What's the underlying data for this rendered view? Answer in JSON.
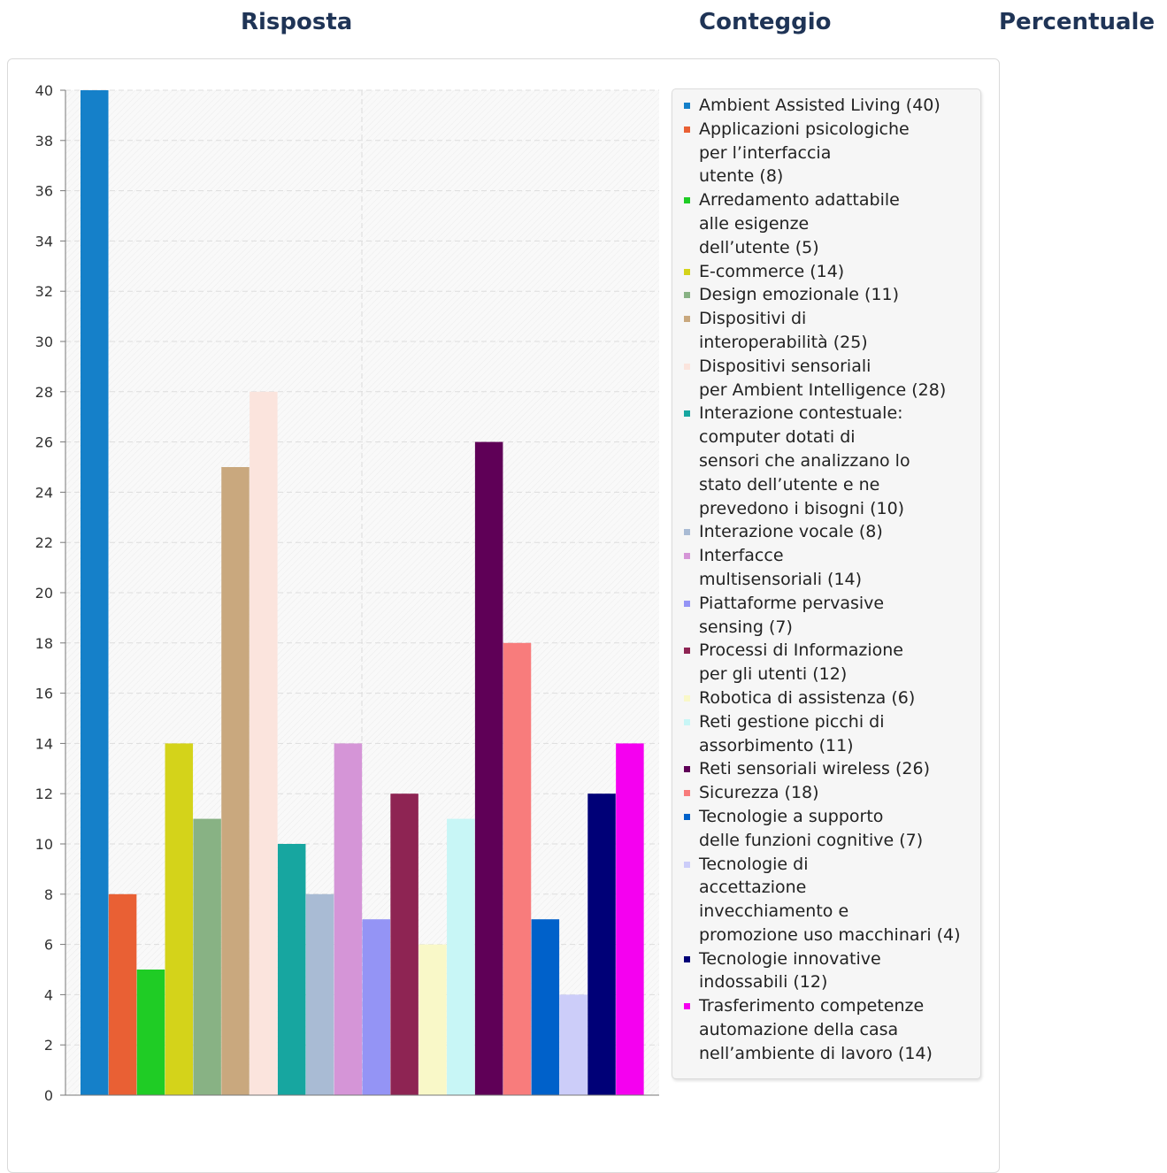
{
  "headers": {
    "risposta": "Risposta",
    "conteggio": "Conteggio",
    "percentuale": "Percentuale"
  },
  "chart_data": {
    "type": "bar",
    "title": "",
    "xlabel": "",
    "ylabel": "",
    "ylim": [
      0,
      40
    ],
    "y_ticks": [
      0,
      2,
      4,
      6,
      8,
      10,
      12,
      14,
      16,
      18,
      20,
      22,
      24,
      26,
      28,
      30,
      32,
      34,
      36,
      38,
      40
    ],
    "grid": true,
    "legend_position": "right",
    "categories": [
      "Ambient Assisted Living (40)",
      "Applicazioni psicologiche\nper l’interfaccia\nutente (8)",
      "Arredamento adattabile\nalle esigenze\ndell’utente (5)",
      "E-commerce (14)",
      "Design emozionale (11)",
      "Dispositivi di\ninteroperabilità (25)",
      "Dispositivi sensoriali\nper Ambient Intelligence (28)",
      "Interazione contestuale:\ncomputer dotati di\nsensori che analizzano lo\nstato dell’utente e ne\nprevedono i bisogni (10)",
      "Interazione vocale (8)",
      "Interfacce\nmultisensoriali (14)",
      "Piattaforme pervasive\nsensing (7)",
      "Processi di Informazione\nper gli utenti (12)",
      "Robotica di assistenza (6)",
      "Reti gestione picchi di\nassorbimento (11)",
      "Reti sensoriali wireless (26)",
      "Sicurezza (18)",
      "Tecnologie a supporto\ndelle funzioni cognitive (7)",
      "Tecnologie di\naccettazione\ninvecchiamento e\npromozione uso macchinari (4)",
      "Tecnologie innovative\nindossabili (12)",
      "Trasferimento competenze\nautomazione della casa\nnell’ambiente di lavoro (14)"
    ],
    "values": [
      40,
      8,
      5,
      14,
      11,
      25,
      28,
      10,
      8,
      14,
      7,
      12,
      6,
      11,
      26,
      18,
      7,
      4,
      12,
      14
    ],
    "colors": [
      "#1580c9",
      "#e96034",
      "#1fcc25",
      "#d4d31a",
      "#88b284",
      "#c9a87e",
      "#fbe4dd",
      "#17a6a0",
      "#a9bbd4",
      "#d595d7",
      "#9494f5",
      "#8e2453",
      "#f9f8c8",
      "#c8f6f6",
      "#5f0057",
      "#f87c7c",
      "#0061ca",
      "#cccdf9",
      "#000077",
      "#f500f0"
    ]
  }
}
